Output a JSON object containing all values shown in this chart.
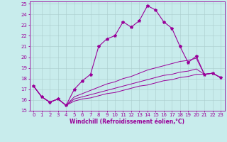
{
  "xlabel": "Windchill (Refroidissement éolien,°C)",
  "background_color": "#c8ecec",
  "line_color": "#990099",
  "grid_color": "#aacccc",
  "xlim": [
    -0.5,
    23.5
  ],
  "ylim": [
    15.0,
    25.2
  ],
  "yticks": [
    15,
    16,
    17,
    18,
    19,
    20,
    21,
    22,
    23,
    24,
    25
  ],
  "xticks": [
    0,
    1,
    2,
    3,
    4,
    5,
    6,
    7,
    8,
    9,
    10,
    11,
    12,
    13,
    14,
    15,
    16,
    17,
    18,
    19,
    20,
    21,
    22,
    23
  ],
  "series": [
    [
      17.3,
      16.3,
      15.8,
      16.1,
      15.5,
      17.0,
      17.8,
      18.4,
      21.0,
      21.7,
      22.0,
      23.3,
      22.8,
      23.4,
      24.8,
      24.4,
      23.3,
      22.7,
      21.0,
      19.5,
      20.1,
      18.4,
      18.5,
      18.1
    ],
    [
      17.3,
      16.3,
      15.8,
      16.1,
      15.5,
      16.3,
      16.6,
      16.9,
      17.2,
      17.5,
      17.7,
      18.0,
      18.2,
      18.5,
      18.8,
      19.0,
      19.2,
      19.4,
      19.6,
      19.7,
      19.9,
      18.4,
      18.5,
      18.1
    ],
    [
      17.3,
      16.3,
      15.8,
      16.1,
      15.5,
      16.1,
      16.3,
      16.5,
      16.7,
      16.9,
      17.1,
      17.3,
      17.5,
      17.7,
      17.9,
      18.1,
      18.3,
      18.4,
      18.6,
      18.7,
      18.9,
      18.4,
      18.5,
      18.1
    ],
    [
      17.3,
      16.3,
      15.8,
      16.1,
      15.5,
      15.9,
      16.1,
      16.2,
      16.4,
      16.6,
      16.7,
      16.9,
      17.1,
      17.3,
      17.4,
      17.6,
      17.8,
      17.9,
      18.1,
      18.2,
      18.4,
      18.4,
      18.5,
      18.1
    ]
  ],
  "tick_fontsize": 5.0,
  "xlabel_fontsize": 5.5
}
